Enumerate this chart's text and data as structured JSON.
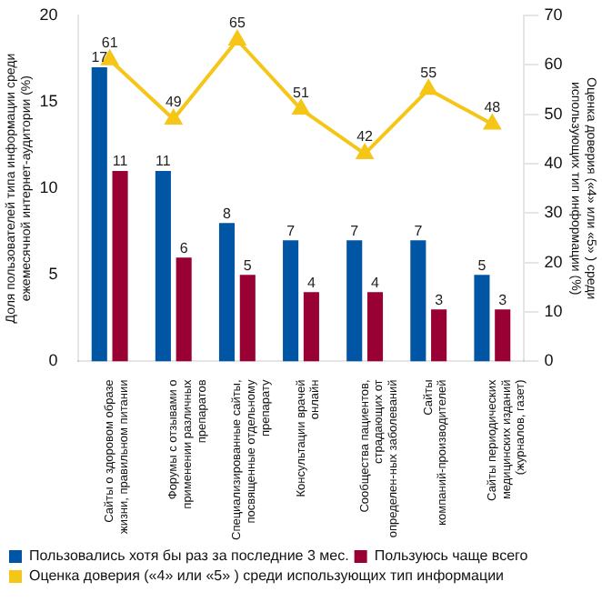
{
  "chart_data": {
    "type": "bar",
    "xlabel": null,
    "ylabel": "Доля пользователей типа информации среди ежемесячной интернет-аудитории (%)",
    "y2label": "Оценка доверия («4» или «5» ) среди использующих тип информации (%)",
    "categories": [
      "Сайты о здоровом образе жизни, правильном питании",
      "Форумы с отзывами о применении различных препаратов",
      "Специализированные сайты, посвященные отдельному препарату",
      "Консультации врачей онлайн",
      "Сообщества пациентов, страдающих от определен-ных заболеваний",
      "Сайты компаний-производителей",
      "Сайты периодических медицинских изданий (журналов, газет)"
    ],
    "series": [
      {
        "name": "Пользовались хотя бы раз за последние 3 мес.",
        "color": "#0055a5",
        "values": [
          17,
          11,
          8,
          7,
          7,
          7,
          5
        ]
      },
      {
        "name": "Пользуюсь чаще всего",
        "color": "#990033",
        "values": [
          11,
          6,
          5,
          4,
          4,
          3,
          3
        ]
      },
      {
        "name": "Оценка доверия («4» или «5» ) среди использующих тип информации",
        "type": "line",
        "axis": "y2",
        "color": "#f5c518",
        "marker": "triangle",
        "values": [
          61,
          49,
          65,
          51,
          42,
          55,
          48
        ]
      }
    ],
    "ylim": [
      0,
      20
    ],
    "yticks": [
      0,
      5,
      10,
      15,
      20
    ],
    "y2lim": [
      0,
      70
    ],
    "y2ticks": [
      0,
      10,
      20,
      30,
      40,
      50,
      60,
      70
    ],
    "data_labels": true,
    "grid": false,
    "legend": "bottom"
  }
}
